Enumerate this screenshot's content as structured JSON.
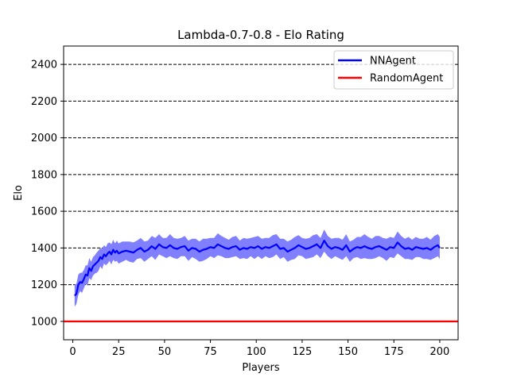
{
  "chart_data": {
    "type": "line",
    "title": "Lambda-0.7-0.8 - Elo Rating",
    "xlabel": "Players",
    "ylabel": "Elo",
    "xlim": [
      -5,
      210
    ],
    "ylim": [
      900,
      2500
    ],
    "xticks": [
      0,
      25,
      50,
      75,
      100,
      125,
      150,
      175,
      200
    ],
    "yticks": [
      1000,
      1200,
      1400,
      1600,
      1800,
      2000,
      2200,
      2400
    ],
    "grid": "horizontal dashed",
    "legend_placement": "top-right",
    "series": [
      {
        "name": "NNAgent",
        "color": "#0000ff",
        "band_color": "#8080ff",
        "x": [
          1,
          2,
          3,
          4,
          5,
          6,
          7,
          8,
          9,
          10,
          11,
          12,
          13,
          14,
          15,
          16,
          17,
          18,
          19,
          20,
          21,
          22,
          23,
          24,
          25,
          27,
          29,
          31,
          33,
          35,
          37,
          39,
          41,
          43,
          45,
          47,
          49,
          51,
          53,
          55,
          57,
          59,
          61,
          63,
          65,
          67,
          69,
          71,
          73,
          75,
          77,
          79,
          81,
          83,
          85,
          87,
          89,
          91,
          93,
          95,
          97,
          99,
          101,
          103,
          105,
          107,
          109,
          111,
          113,
          115,
          117,
          119,
          121,
          123,
          125,
          127,
          129,
          131,
          133,
          135,
          137,
          139,
          141,
          143,
          145,
          147,
          149,
          151,
          153,
          155,
          157,
          159,
          161,
          163,
          165,
          167,
          169,
          171,
          173,
          175,
          177,
          179,
          181,
          183,
          185,
          187,
          189,
          191,
          193,
          195,
          197,
          199,
          200
        ],
        "values": [
          1140,
          1150,
          1200,
          1215,
          1210,
          1230,
          1255,
          1250,
          1290,
          1275,
          1300,
          1310,
          1320,
          1330,
          1350,
          1340,
          1365,
          1355,
          1370,
          1380,
          1365,
          1390,
          1375,
          1385,
          1370,
          1380,
          1385,
          1380,
          1375,
          1390,
          1400,
          1380,
          1390,
          1410,
          1395,
          1420,
          1405,
          1400,
          1415,
          1400,
          1395,
          1405,
          1410,
          1385,
          1400,
          1395,
          1380,
          1390,
          1395,
          1405,
          1400,
          1420,
          1410,
          1400,
          1395,
          1405,
          1410,
          1390,
          1400,
          1395,
          1405,
          1400,
          1410,
          1395,
          1405,
          1400,
          1410,
          1420,
          1395,
          1400,
          1380,
          1390,
          1400,
          1415,
          1405,
          1395,
          1400,
          1410,
          1420,
          1400,
          1440,
          1410,
          1395,
          1405,
          1400,
          1390,
          1415,
          1380,
          1395,
          1405,
          1400,
          1410,
          1400,
          1395,
          1405,
          1410,
          1400,
          1390,
          1405,
          1400,
          1430,
          1410,
          1395,
          1400,
          1390,
          1405,
          1400,
          1395,
          1400,
          1390,
          1405,
          1415,
          1400
        ],
        "band_halfwidth": [
          60,
          55,
          55,
          50,
          55,
          50,
          50,
          55,
          55,
          50,
          50,
          50,
          55,
          55,
          50,
          55,
          50,
          50,
          55,
          50,
          55,
          55,
          50,
          55,
          55,
          55,
          50,
          55,
          55,
          50,
          55,
          55,
          50,
          55,
          60,
          55,
          50,
          55,
          60,
          55,
          55,
          50,
          55,
          55,
          50,
          55,
          55,
          60,
          55,
          50,
          55,
          60,
          55,
          55,
          50,
          55,
          55,
          50,
          55,
          55,
          50,
          60,
          55,
          55,
          50,
          55,
          60,
          55,
          55,
          50,
          55,
          55,
          60,
          55,
          50,
          55,
          55,
          60,
          55,
          55,
          60,
          55,
          55,
          50,
          55,
          55,
          60,
          55,
          50,
          55,
          60,
          65,
          60,
          55,
          60,
          55,
          55,
          60,
          55,
          55,
          60,
          55,
          55,
          60,
          55,
          55,
          50,
          55,
          60,
          55,
          60,
          60,
          60
        ]
      },
      {
        "name": "RandomAgent",
        "color": "#ff0000",
        "constant": 1000
      }
    ]
  }
}
